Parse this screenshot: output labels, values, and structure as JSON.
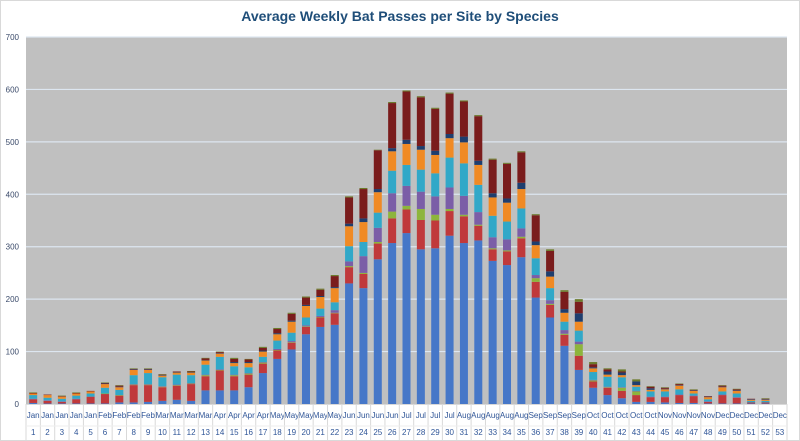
{
  "chart_data": {
    "type": "bar",
    "stacked": true,
    "title": "Average Weekly Bat Passes per Site by Species",
    "xlabel": "",
    "ylabel": "",
    "ylim": [
      0,
      700
    ],
    "yticks": [
      0,
      100,
      200,
      300,
      400,
      500,
      600,
      700
    ],
    "grid": true,
    "legend": "none",
    "background": "#c0c0c0",
    "categories": [
      "1",
      "2",
      "3",
      "4",
      "5",
      "6",
      "7",
      "8",
      "9",
      "10",
      "11",
      "12",
      "13",
      "14",
      "15",
      "16",
      "17",
      "18",
      "19",
      "20",
      "21",
      "22",
      "23",
      "24",
      "25",
      "26",
      "27",
      "28",
      "29",
      "30",
      "31",
      "32",
      "33",
      "34",
      "35",
      "36",
      "37",
      "38",
      "39",
      "40",
      "41",
      "42",
      "43",
      "44",
      "45",
      "46",
      "47",
      "48",
      "49",
      "50",
      "51",
      "52",
      "53"
    ],
    "months": [
      "Jan",
      "Jan",
      "Jan",
      "Jan",
      "Jan",
      "Feb",
      "Feb",
      "Feb",
      "Feb",
      "Mar",
      "Mar",
      "Mar",
      "Mar",
      "Apr",
      "Apr",
      "Apr",
      "Apr",
      "May",
      "May",
      "May",
      "May",
      "May",
      "Jun",
      "Jun",
      "Jun",
      "Jun",
      "Jul",
      "Jul",
      "Jul",
      "Jul",
      "Aug",
      "Aug",
      "Aug",
      "Aug",
      "Aug",
      "Sep",
      "Sep",
      "Sep",
      "Sep",
      "Oct",
      "Oct",
      "Oct",
      "Oct",
      "Oct",
      "Nov",
      "Nov",
      "Nov",
      "Nov",
      "Dec",
      "Dec",
      "Dec",
      "Dec",
      "Dec"
    ],
    "series": [
      {
        "color": "#4677c8",
        "values": [
          2,
          1,
          1,
          1,
          1,
          1,
          3,
          3,
          4,
          6,
          8,
          6,
          26,
          26,
          26,
          32,
          59,
          86,
          104,
          133,
          147,
          151,
          230,
          221,
          276,
          307,
          326,
          295,
          297,
          321,
          307,
          312,
          273,
          265,
          280,
          203,
          165,
          111,
          65,
          31,
          17,
          11,
          4,
          4,
          3,
          2,
          2,
          1,
          1,
          1,
          1,
          1,
          0
        ]
      },
      {
        "color": "#c0393b",
        "values": [
          7,
          5,
          3,
          8,
          13,
          18,
          13,
          33,
          32,
          26,
          27,
          32,
          27,
          38,
          27,
          24,
          18,
          16,
          13,
          14,
          18,
          22,
          31,
          27,
          30,
          47,
          45,
          56,
          53,
          47,
          51,
          28,
          22,
          26,
          36,
          30,
          24,
          21,
          27,
          12,
          14,
          14,
          13,
          9,
          10,
          15,
          13,
          3,
          16,
          11,
          2,
          2,
          0
        ]
      },
      {
        "color": "#8db53c",
        "values": [
          0,
          0,
          0,
          0,
          0,
          1,
          1,
          1,
          1,
          1,
          1,
          1,
          2,
          1,
          2,
          2,
          2,
          1,
          1,
          1,
          1,
          1,
          2,
          2,
          3,
          13,
          7,
          21,
          11,
          4,
          3,
          2,
          2,
          2,
          3,
          7,
          2,
          2,
          22,
          2,
          1,
          6,
          7,
          0,
          0,
          0,
          0,
          0,
          0,
          0,
          0,
          0,
          0
        ]
      },
      {
        "color": "#7b5ea7",
        "values": [
          1,
          1,
          1,
          1,
          0,
          0,
          0,
          1,
          1,
          1,
          1,
          1,
          1,
          1,
          1,
          1,
          1,
          2,
          2,
          2,
          2,
          5,
          9,
          32,
          27,
          35,
          38,
          33,
          35,
          41,
          36,
          24,
          21,
          21,
          16,
          6,
          7,
          7,
          5,
          1,
          1,
          1,
          1,
          1,
          1,
          1,
          1,
          1,
          1,
          1,
          0,
          0,
          0
        ]
      },
      {
        "color": "#31a8c8",
        "values": [
          7,
          5,
          5,
          6,
          6,
          11,
          10,
          17,
          21,
          17,
          19,
          15,
          19,
          24,
          16,
          11,
          10,
          16,
          16,
          15,
          14,
          15,
          29,
          27,
          29,
          43,
          40,
          42,
          44,
          57,
          62,
          52,
          41,
          34,
          38,
          32,
          23,
          16,
          21,
          15,
          19,
          19,
          8,
          10,
          10,
          10,
          4,
          4,
          6,
          7,
          3,
          3,
          0
        ]
      },
      {
        "color": "#f08a24",
        "values": [
          3,
          5,
          4,
          4,
          4,
          7,
          5,
          10,
          6,
          3,
          4,
          5,
          8,
          6,
          6,
          8,
          10,
          12,
          21,
          22,
          22,
          27,
          38,
          38,
          39,
          37,
          40,
          38,
          35,
          37,
          40,
          38,
          35,
          36,
          37,
          25,
          22,
          17,
          17,
          7,
          4,
          4,
          3,
          3,
          4,
          7,
          5,
          4,
          8,
          5,
          2,
          2,
          0
        ]
      },
      {
        "color": "#1f3e6e",
        "values": [
          0,
          0,
          0,
          0,
          0,
          1,
          1,
          1,
          1,
          1,
          1,
          1,
          1,
          1,
          2,
          2,
          2,
          2,
          2,
          2,
          2,
          2,
          5,
          7,
          6,
          6,
          8,
          7,
          8,
          8,
          11,
          8,
          8,
          8,
          12,
          7,
          10,
          7,
          16,
          2,
          6,
          5,
          7,
          3,
          1,
          1,
          1,
          1,
          1,
          1,
          1,
          1,
          0
        ]
      },
      {
        "color": "#7a1c1c",
        "values": [
          1,
          1,
          1,
          1,
          1,
          1,
          2,
          1,
          1,
          1,
          1,
          1,
          3,
          2,
          6,
          5,
          5,
          8,
          13,
          14,
          12,
          21,
          50,
          56,
          74,
          86,
          92,
          93,
          80,
          77,
          67,
          85,
          64,
          66,
          58,
          50,
          39,
          33,
          22,
          6,
          4,
          2,
          0,
          3,
          2,
          2,
          1,
          1,
          2,
          2,
          1,
          1,
          0
        ]
      },
      {
        "color": "#6b7a2a",
        "values": [
          1,
          0,
          1,
          1,
          0,
          1,
          1,
          1,
          1,
          1,
          0,
          1,
          1,
          1,
          2,
          1,
          2,
          2,
          2,
          2,
          2,
          2,
          2,
          2,
          1,
          2,
          2,
          2,
          2,
          2,
          2,
          2,
          2,
          2,
          2,
          2,
          3,
          3,
          5,
          4,
          2,
          4,
          4,
          1,
          1,
          1,
          1,
          0,
          1,
          1,
          0,
          1,
          0
        ]
      }
    ]
  }
}
